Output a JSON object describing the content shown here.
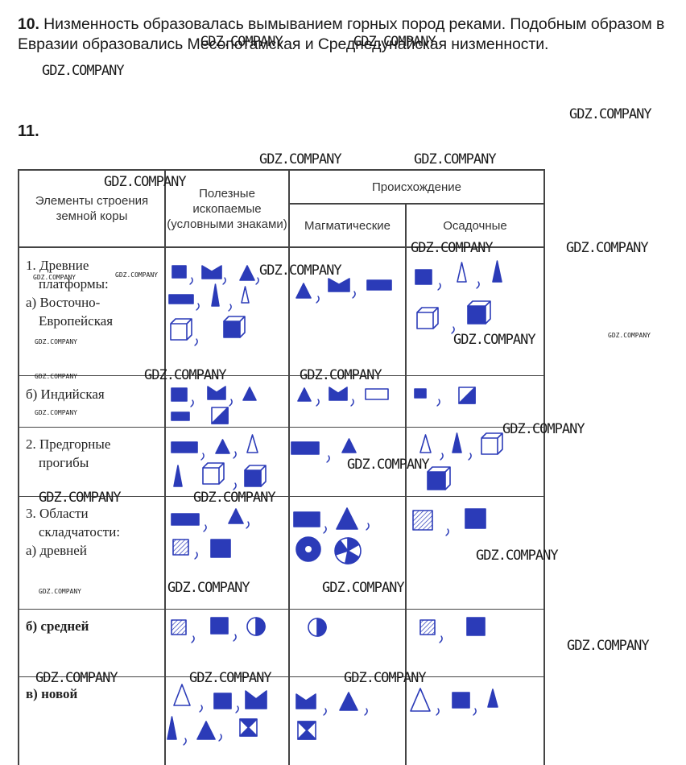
{
  "task10": {
    "number": "10.",
    "text": "Низменность образовалась вымыванием горных пород реками. Подобным образом в Евразии образовались Месопотамская и Среднедунайская низменности."
  },
  "task11": {
    "number": "11."
  },
  "table": {
    "headers": {
      "elements": "Элементы строения земной коры",
      "minerals": "Полезные ископаемые (условными знаками)",
      "origin": "Происхождение",
      "magmatic": "Магматические",
      "sedimentary": "Осадочные"
    },
    "rows": [
      {
        "lines": [
          "1. Древние",
          "платформы:",
          "а) Восточно-",
          "Европейская"
        ]
      },
      {
        "lines": [
          "б) Индийская"
        ]
      },
      {
        "lines": [
          "2. Предгорные",
          "прогибы"
        ]
      },
      {
        "lines": [
          "3. Области",
          "складчатости:",
          "а) древней"
        ]
      },
      {
        "lines": [
          "б) средней"
        ]
      },
      {
        "lines": [
          "в) новой"
        ]
      }
    ]
  },
  "watermark": "GDZ.COMPANY",
  "colors": {
    "ink": "#2b3bb8",
    "grid": "#444444"
  }
}
